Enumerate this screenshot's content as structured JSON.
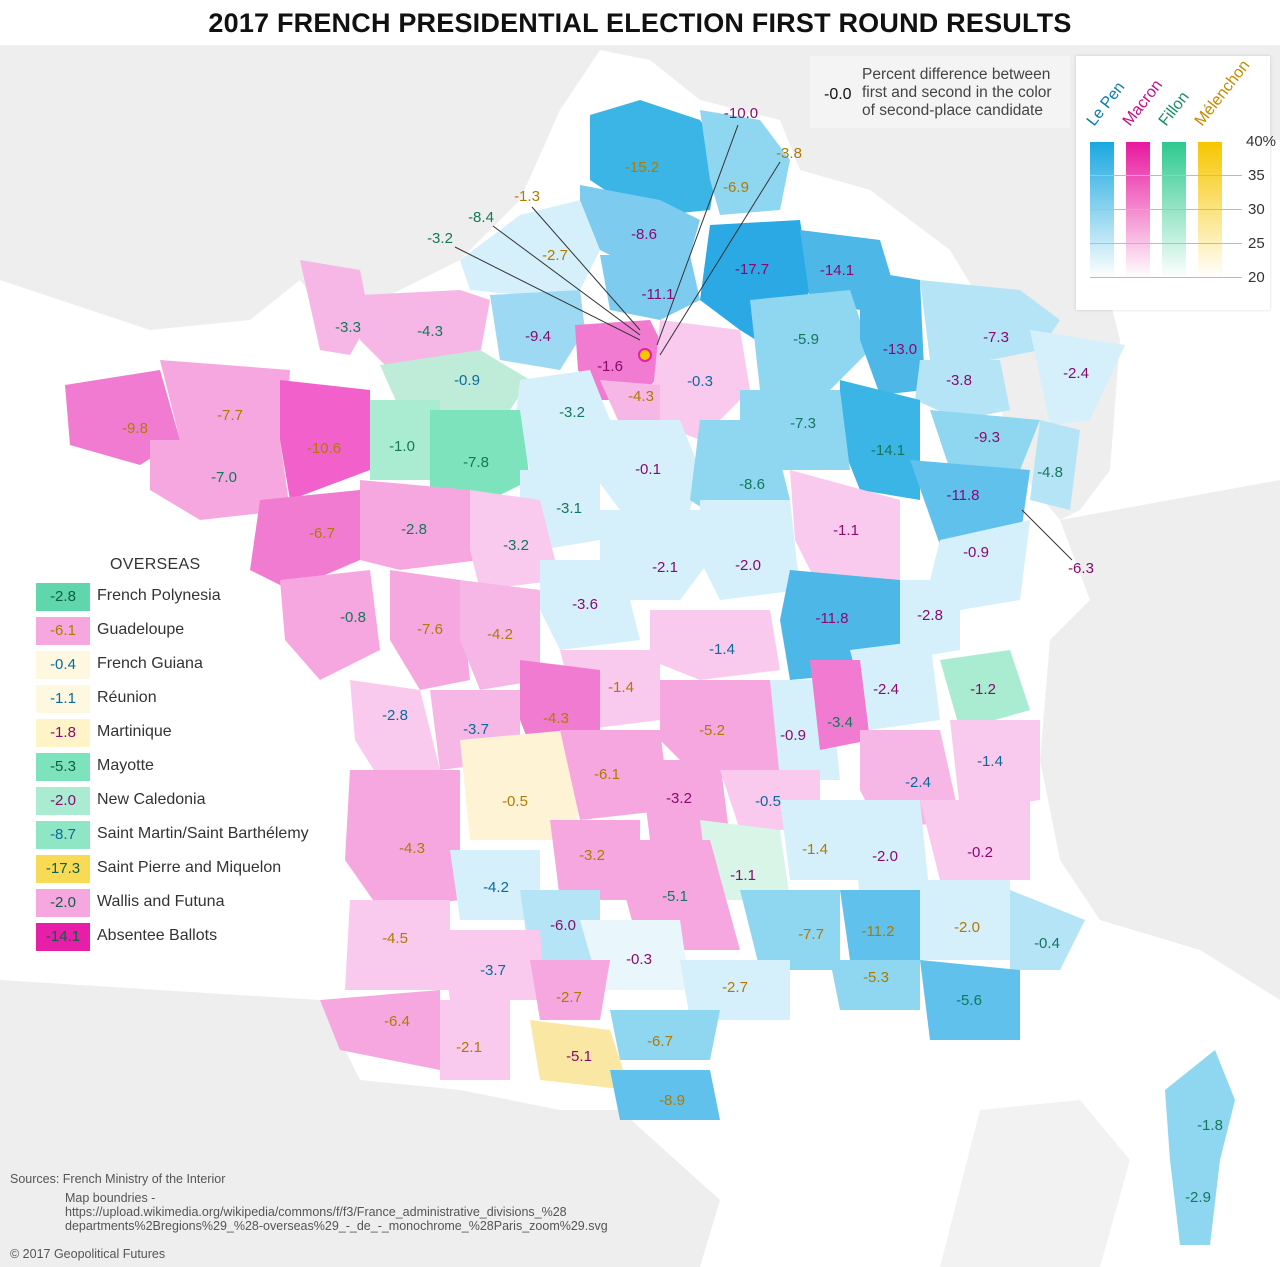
{
  "title": "2017 FRENCH PRESIDENTIAL ELECTION FIRST ROUND RESULTS",
  "note": {
    "example_value": "-0.0",
    "line1": "Percent difference between",
    "line2": "first and second in the color",
    "line3": "of second-place candidate"
  },
  "legend": {
    "candidates": [
      {
        "name": "Le Pen",
        "color": "#1aa8e0"
      },
      {
        "name": "Macron",
        "color": "#e8179e"
      },
      {
        "name": "Fillon",
        "color": "#2ec98f"
      },
      {
        "name": "Mélenchon",
        "color": "#f7c600"
      }
    ],
    "ticks": [
      "40%",
      "35",
      "30",
      "25",
      "20"
    ],
    "tick_values": [
      40,
      35,
      30,
      25,
      20
    ]
  },
  "overseas": {
    "title": "OVERSEAS",
    "items": [
      {
        "value": "-2.8",
        "label": "French Polynesia",
        "color": "#5fd6ab",
        "text_color": "#0e5e45"
      },
      {
        "value": "-6.1",
        "label": "Guadeloupe",
        "color": "#f6a7e0",
        "text_color": "#b07a00"
      },
      {
        "value": "-0.4",
        "label": "French Guiana",
        "color": "#fff8e1",
        "text_color": "#0a6a9c"
      },
      {
        "value": "-1.1",
        "label": "Réunion",
        "color": "#fff8e1",
        "text_color": "#0a6a9c"
      },
      {
        "value": "-1.8",
        "label": "Martinique",
        "color": "#fff3c8",
        "text_color": "#8a0a6e"
      },
      {
        "value": "-5.3",
        "label": "Mayotte",
        "color": "#7de3bc",
        "text_color": "#0e5e45"
      },
      {
        "value": "-2.0",
        "label": "New Caledonia",
        "color": "#a9ecd2",
        "text_color": "#8a0a6e"
      },
      {
        "value": "-8.7",
        "label": "Saint Martin/Saint Barthélemy",
        "color": "#8fe6c4",
        "text_color": "#0a6a9c"
      },
      {
        "value": "-17.3",
        "label": "Saint Pierre and Miquelon",
        "color": "#f9da55",
        "text_color": "#0e5e45"
      },
      {
        "value": "-2.0",
        "label": "Wallis and Futuna",
        "color": "#f6a7e0",
        "text_color": "#0e5e45"
      },
      {
        "value": "-14.1",
        "label": "Absentee Ballots",
        "color": "#e61ea8",
        "text_color": "#0e5e45"
      }
    ]
  },
  "departments": [
    {
      "value": "-15.2",
      "party": "melenchon",
      "fill": "#3bb5e6"
    },
    {
      "value": "-6.9",
      "party": "melenchon",
      "fill": "#8fd6f1"
    },
    {
      "value": "-10.0",
      "party": "macron",
      "fill": "#f27bd2"
    },
    {
      "value": "-3.8",
      "party": "melenchon",
      "fill": "#f9da55"
    },
    {
      "value": "-1.3",
      "party": "melenchon",
      "fill": "#fbe7f6"
    },
    {
      "value": "-8.4",
      "party": "fillon",
      "fill": "#f8b4e4"
    },
    {
      "value": "-3.2",
      "party": "fillon",
      "fill": "#f8b4e4"
    },
    {
      "value": "-8.6",
      "party": "macron",
      "fill": "#7ecbf0"
    },
    {
      "value": "-2.7",
      "party": "melenchon",
      "fill": "#d5f0fa"
    },
    {
      "value": "-17.7",
      "party": "macron",
      "fill": "#2aa9e4"
    },
    {
      "value": "-14.1",
      "party": "macron",
      "fill": "#4db8e8"
    },
    {
      "value": "-11.1",
      "party": "macron",
      "fill": "#7ecbf0"
    },
    {
      "value": "-9.4",
      "party": "macron",
      "fill": "#9dd9f3"
    },
    {
      "value": "-3.3",
      "party": "fillon",
      "fill": "#f6b7e6"
    },
    {
      "value": "-4.3",
      "party": "fillon",
      "fill": "#f6b7e6"
    },
    {
      "value": "-1.6",
      "party": "macron",
      "fill": "#f27bd2"
    },
    {
      "value": "-4.3",
      "party": "melenchon",
      "fill": "#f6b7e6"
    },
    {
      "value": "-0.3",
      "party": "lepen",
      "fill": "#f9c9ee"
    },
    {
      "value": "-5.9",
      "party": "fillon",
      "fill": "#8fd6f1"
    },
    {
      "value": "-13.0",
      "party": "macron",
      "fill": "#4db8e8"
    },
    {
      "value": "-7.3",
      "party": "macron",
      "fill": "#b5e4f6"
    },
    {
      "value": "-3.8",
      "party": "macron",
      "fill": "#b5e4f6"
    },
    {
      "value": "-2.4",
      "party": "macron",
      "fill": "#d5f0fa"
    },
    {
      "value": "-0.9",
      "party": "lepen",
      "fill": "#bfecd8"
    },
    {
      "value": "-3.2",
      "party": "fillon",
      "fill": "#d5f0fa"
    },
    {
      "value": "-0.1",
      "party": "macron",
      "fill": "#d5f0fa"
    },
    {
      "value": "-7.3",
      "party": "fillon",
      "fill": "#8fd6f1"
    },
    {
      "value": "-14.1",
      "party": "fillon",
      "fill": "#3bb5e6"
    },
    {
      "value": "-9.3",
      "party": "macron",
      "fill": "#8fd6f1"
    },
    {
      "value": "-4.8",
      "party": "fillon",
      "fill": "#b5e4f6"
    },
    {
      "value": "-9.8",
      "party": "melenchon",
      "fill": "#f27bd2"
    },
    {
      "value": "-7.7",
      "party": "melenchon",
      "fill": "#f6a7e0"
    },
    {
      "value": "-10.6",
      "party": "melenchon",
      "fill": "#f261cb"
    },
    {
      "value": "-1.0",
      "party": "fillon",
      "fill": "#a9ecd2"
    },
    {
      "value": "-7.8",
      "party": "fillon",
      "fill": "#7de3bc"
    },
    {
      "value": "-7.0",
      "party": "fillon",
      "fill": "#f6a7e0"
    },
    {
      "value": "-3.1",
      "party": "fillon",
      "fill": "#d5f0fa"
    },
    {
      "value": "-8.6",
      "party": "fillon",
      "fill": "#8fd6f1"
    },
    {
      "value": "-11.8",
      "party": "macron",
      "fill": "#5fc1ec"
    },
    {
      "value": "-1.1",
      "party": "macron",
      "fill": "#f9c9ee"
    },
    {
      "value": "-6.3",
      "party": "macron",
      "fill": "#b5e4f6"
    },
    {
      "value": "-6.7",
      "party": "melenchon",
      "fill": "#f27bd2"
    },
    {
      "value": "-2.8",
      "party": "fillon",
      "fill": "#f6a7e0"
    },
    {
      "value": "-3.2",
      "party": "fillon",
      "fill": "#f9c9ee"
    },
    {
      "value": "-2.1",
      "party": "macron",
      "fill": "#d5f0fa"
    },
    {
      "value": "-2.0",
      "party": "macron",
      "fill": "#d5f0fa"
    },
    {
      "value": "-0.9",
      "party": "macron",
      "fill": "#d5f0fa"
    },
    {
      "value": "-0.8",
      "party": "fillon",
      "fill": "#f6a7e0"
    },
    {
      "value": "-7.6",
      "party": "melenchon",
      "fill": "#f6a7e0"
    },
    {
      "value": "-4.2",
      "party": "melenchon",
      "fill": "#f6b7e6"
    },
    {
      "value": "-3.6",
      "party": "macron",
      "fill": "#d5f0fa"
    },
    {
      "value": "-11.8",
      "party": "macron",
      "fill": "#4db8e8"
    },
    {
      "value": "-2.8",
      "party": "macron",
      "fill": "#d5f0fa"
    },
    {
      "value": "-1.4",
      "party": "lepen",
      "fill": "#f9c9ee"
    },
    {
      "value": "-1.4",
      "party": "melenchon",
      "fill": "#f9c9ee"
    },
    {
      "value": "-2.4",
      "party": "macron",
      "fill": "#d5f0fa"
    },
    {
      "value": "-1.2",
      "party": "macron",
      "fill": "#a9ecd2"
    },
    {
      "value": "-2.8",
      "party": "lepen",
      "fill": "#f6b7e6"
    },
    {
      "value": "-3.7",
      "party": "lepen",
      "fill": "#f6b7e6"
    },
    {
      "value": "-4.3",
      "party": "melenchon",
      "fill": "#f27bd2"
    },
    {
      "value": "-5.2",
      "party": "melenchon",
      "fill": "#f6a7e0"
    },
    {
      "value": "-0.9",
      "party": "macron",
      "fill": "#d5f0fa"
    },
    {
      "value": "-3.4",
      "party": "fillon",
      "fill": "#f27bd2"
    },
    {
      "value": "-2.4",
      "party": "lepen",
      "fill": "#f6b7e6"
    },
    {
      "value": "-1.4",
      "party": "lepen",
      "fill": "#f9c9ee"
    },
    {
      "value": "-0.5",
      "party": "melenchon",
      "fill": "#fff3d6"
    },
    {
      "value": "-6.1",
      "party": "melenchon",
      "fill": "#f6a7e0"
    },
    {
      "value": "-3.2",
      "party": "macron",
      "fill": "#f6a7e0"
    },
    {
      "value": "-0.5",
      "party": "lepen",
      "fill": "#f9c9ee"
    },
    {
      "value": "-1.4",
      "party": "melenchon",
      "fill": "#d5f0fa"
    },
    {
      "value": "-2.0",
      "party": "macron",
      "fill": "#d5f0fa"
    },
    {
      "value": "-0.2",
      "party": "macron",
      "fill": "#f9c9ee"
    },
    {
      "value": "-4.3",
      "party": "melenchon",
      "fill": "#f6a7e0"
    },
    {
      "value": "-3.2",
      "party": "melenchon",
      "fill": "#f6a7e0"
    },
    {
      "value": "-1.1",
      "party": "macron",
      "fill": "#d8f5e8"
    },
    {
      "value": "-4.2",
      "party": "lepen",
      "fill": "#d5f0fa"
    },
    {
      "value": "-5.1",
      "party": "fillon",
      "fill": "#f6a7e0"
    },
    {
      "value": "-6.0",
      "party": "macron",
      "fill": "#b5e4f6"
    },
    {
      "value": "-7.7",
      "party": "melenchon",
      "fill": "#8fd6f1"
    },
    {
      "value": "-11.2",
      "party": "melenchon",
      "fill": "#5fc1ec"
    },
    {
      "value": "-2.0",
      "party": "melenchon",
      "fill": "#d5f0fa"
    },
    {
      "value": "-0.4",
      "party": "fillon",
      "fill": "#b5e4f6"
    },
    {
      "value": "-4.5",
      "party": "melenchon",
      "fill": "#f9c9ee"
    },
    {
      "value": "-3.7",
      "party": "lepen",
      "fill": "#f9c9ee"
    },
    {
      "value": "-0.3",
      "party": "macron",
      "fill": "#e9f7fc"
    },
    {
      "value": "-2.7",
      "party": "melenchon",
      "fill": "#d5f0fa"
    },
    {
      "value": "-5.3",
      "party": "melenchon",
      "fill": "#8fd6f1"
    },
    {
      "value": "-5.6",
      "party": "fillon",
      "fill": "#5fc1ec"
    },
    {
      "value": "-2.7",
      "party": "melenchon",
      "fill": "#f6a7e0"
    },
    {
      "value": "-6.4",
      "party": "melenchon",
      "fill": "#f6a7e0"
    },
    {
      "value": "-2.1",
      "party": "melenchon",
      "fill": "#f9c9ee"
    },
    {
      "value": "-5.1",
      "party": "macron",
      "fill": "#fbe7a4"
    },
    {
      "value": "-6.7",
      "party": "melenchon",
      "fill": "#8fd6f1"
    },
    {
      "value": "-8.9",
      "party": "melenchon",
      "fill": "#5fc1ec"
    },
    {
      "value": "-1.8",
      "party": "fillon",
      "fill": "#8fd6f1"
    },
    {
      "value": "-2.9",
      "party": "fillon",
      "fill": "#8fd6f1"
    }
  ],
  "sources": {
    "line1": "Sources:  French Ministry of the Interior",
    "line2": "Map boundries -",
    "line3": "https://upload.wikimedia.org/wikipedia/commons/f/f3/France_administrative_divisions_%28",
    "line4": "departments%2Bregions%29_%28-overseas%29_-_de_-_monochrome_%28Paris_zoom%29.svg"
  },
  "copyright": "© 2017 Geopolitical Futures"
}
